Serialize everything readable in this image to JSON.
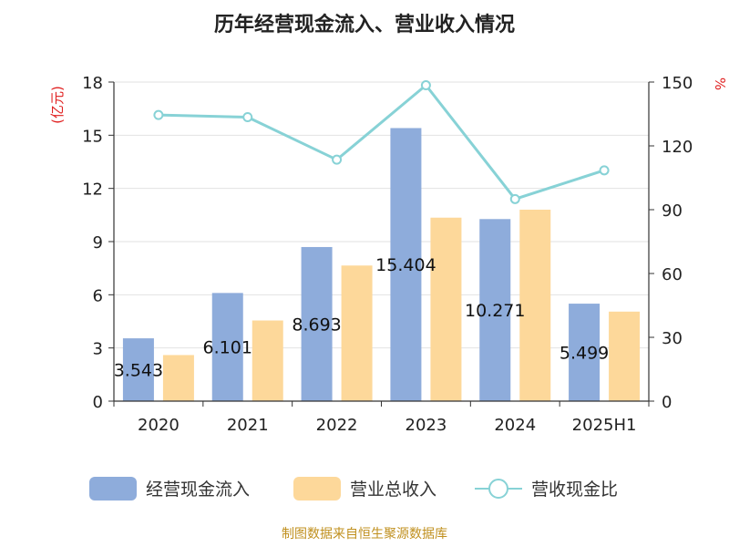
{
  "chart_data": {
    "type": "bar",
    "title": "历年经营现金流入、营业收入情况",
    "categories": [
      "2020",
      "2021",
      "2022",
      "2023",
      "2024",
      "2025H1"
    ],
    "series": [
      {
        "name": "经营现金流入",
        "kind": "bar",
        "axis": "left",
        "color": "#8eacdb",
        "values": [
          3.543,
          6.101,
          8.693,
          15.404,
          10.271,
          5.499
        ],
        "labels": [
          "3.543",
          "6.101",
          "8.693",
          "15.404",
          "10.271",
          "5.499"
        ]
      },
      {
        "name": "营业总收入",
        "kind": "bar",
        "axis": "left",
        "color": "#fdd89a",
        "values": [
          2.6,
          4.55,
          7.65,
          10.35,
          10.8,
          5.05
        ]
      },
      {
        "name": "营收现金比",
        "kind": "line",
        "axis": "right",
        "color": "#87d2d6",
        "values": [
          134.5,
          133.5,
          113.5,
          148.5,
          95.0,
          108.5
        ]
      }
    ],
    "y_left": {
      "unit": "(亿元)",
      "min": 0,
      "max": 18,
      "ticks": [
        0,
        3,
        6,
        9,
        12,
        15,
        18
      ]
    },
    "y_right": {
      "unit": "%",
      "min": 0,
      "max": 150,
      "ticks": [
        0,
        30,
        60,
        90,
        120,
        150
      ]
    },
    "grid": true,
    "legend": {
      "position": "bottom"
    },
    "source": "制图数据来自恒生聚源数据库"
  }
}
